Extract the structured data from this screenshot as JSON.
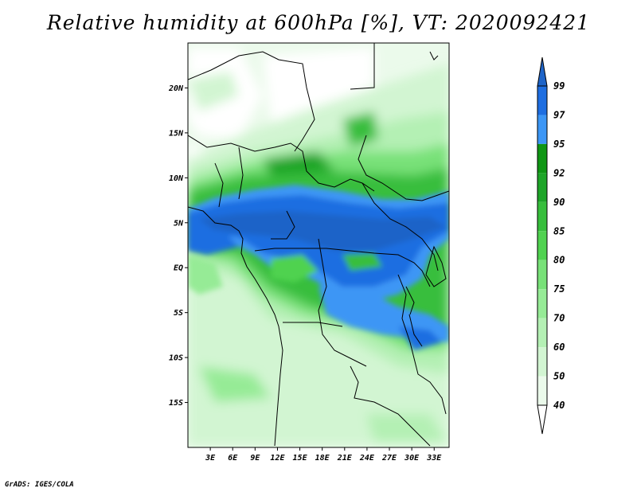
{
  "title": "Relative humidity at 600hPa [%], VT: 2020092421",
  "credit": "GrADS: IGES/COLA",
  "map": {
    "lat_labels": [
      "20N",
      "15N",
      "10N",
      "5N",
      "EQ",
      "5S",
      "10S",
      "15S"
    ],
    "lat_values": [
      20,
      15,
      10,
      5,
      0,
      -5,
      -10,
      -15
    ],
    "lon_labels": [
      "3E",
      "6E",
      "9E",
      "12E",
      "15E",
      "18E",
      "21E",
      "24E",
      "27E",
      "30E",
      "33E"
    ],
    "lon_values": [
      3,
      6,
      9,
      12,
      15,
      18,
      21,
      24,
      27,
      30,
      33
    ],
    "lat_range": [
      -20,
      25
    ],
    "lon_range": [
      0,
      35
    ]
  },
  "colorbar": {
    "labels": [
      "99",
      "97",
      "95",
      "92",
      "90",
      "85",
      "80",
      "75",
      "70",
      "60",
      "50",
      "40"
    ],
    "colors": [
      "#1e64c8",
      "#1e6ee1",
      "#3c96f5",
      "#0f9614",
      "#1ea528",
      "#37be3c",
      "#50d250",
      "#78e178",
      "#96eb96",
      "#b4f0b4",
      "#d2f5d2",
      "#ebfaeb",
      "#ffffff"
    ]
  }
}
